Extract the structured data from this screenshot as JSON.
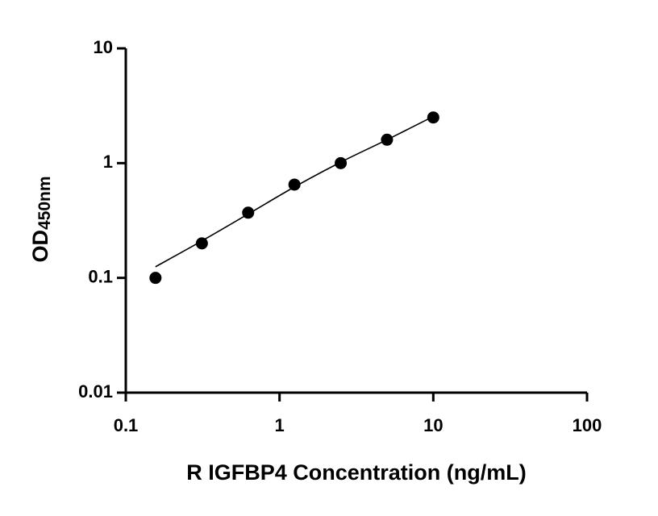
{
  "chart_data": {
    "type": "scatter",
    "x_label": "R IGFBP4 Concentration (ng/mL)",
    "y_label": "OD",
    "y_label_subscript": "450nm",
    "x": [
      0.156,
      0.3125,
      0.625,
      1.25,
      2.5,
      5,
      10
    ],
    "values": [
      0.1,
      0.2,
      0.37,
      0.65,
      1.0,
      1.6,
      2.5
    ],
    "color": "#000000",
    "fit": {
      "x": [
        0.156,
        0.3125,
        0.625,
        1.25,
        2.5,
        5,
        10
      ],
      "values": [
        0.125,
        0.21,
        0.36,
        0.62,
        1.02,
        1.6,
        2.55
      ]
    },
    "xlim": [
      0.1,
      100
    ],
    "xticks": [
      0.1,
      1,
      10,
      100
    ],
    "ylim": [
      0.01,
      10
    ],
    "yticks": [
      0.01,
      0.1,
      1,
      10
    ],
    "xscale": "log",
    "yscale": "log"
  }
}
